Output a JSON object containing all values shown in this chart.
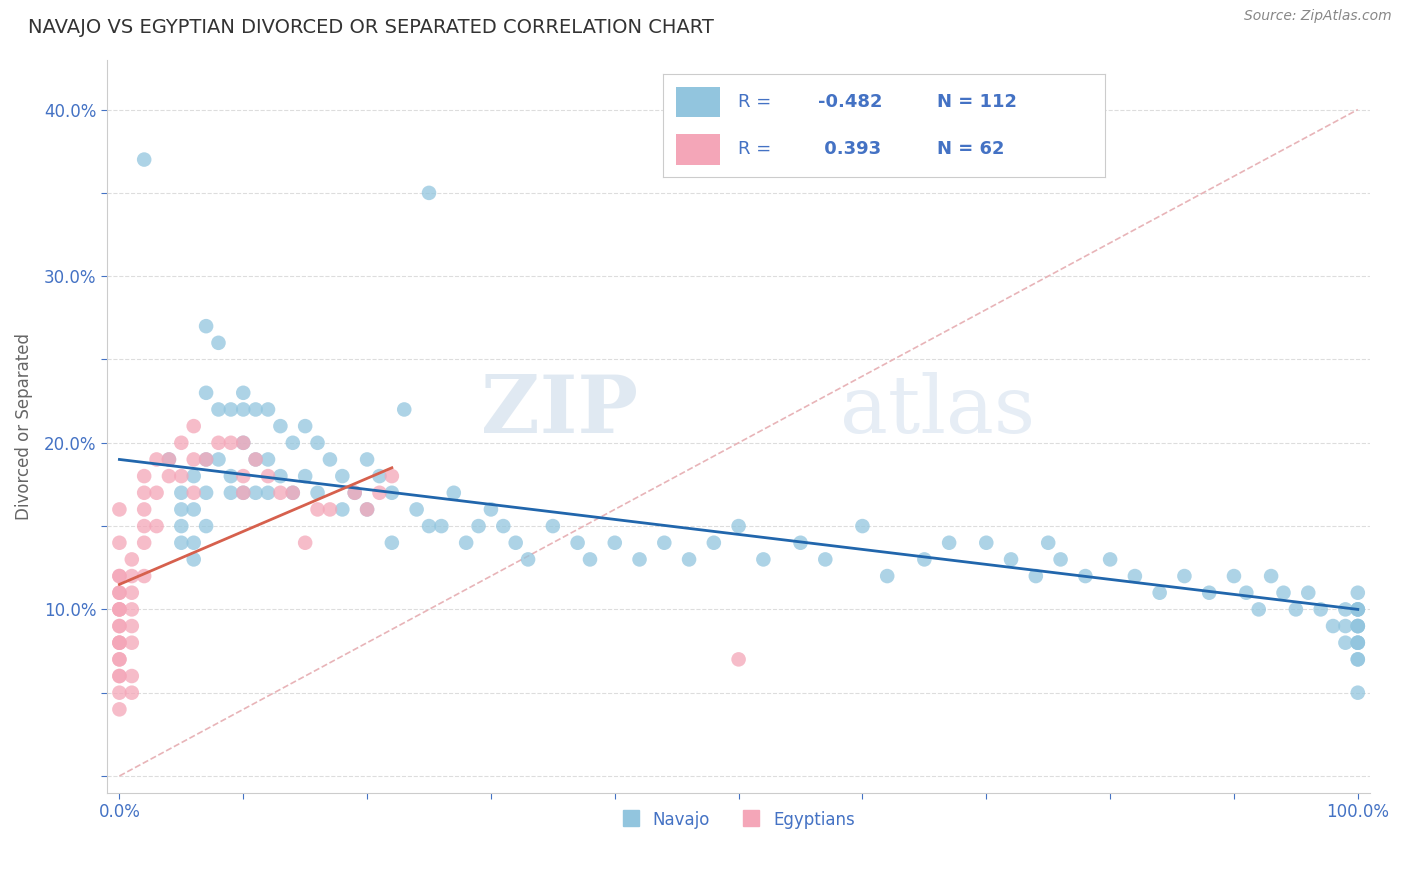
{
  "title": "NAVAJO VS EGYPTIAN DIVORCED OR SEPARATED CORRELATION CHART",
  "source": "Source: ZipAtlas.com",
  "ylabel": "Divorced or Separated",
  "xlim": [
    -0.01,
    1.01
  ],
  "ylim": [
    -0.01,
    0.43
  ],
  "xticks": [
    0.0,
    0.1,
    0.2,
    0.3,
    0.4,
    0.5,
    0.6,
    0.7,
    0.8,
    0.9,
    1.0
  ],
  "yticks": [
    0.0,
    0.05,
    0.1,
    0.15,
    0.2,
    0.25,
    0.3,
    0.35,
    0.4
  ],
  "navajo_R": -0.482,
  "navajo_N": 112,
  "egyptian_R": 0.393,
  "egyptian_N": 62,
  "navajo_color": "#92c5de",
  "egyptian_color": "#f4a6b8",
  "navajo_line_color": "#2166ac",
  "egyptian_line_color": "#d6604d",
  "ref_line_color": "#e8b4b8",
  "tick_color": "#4472c4",
  "background_color": "#ffffff",
  "watermark_zip": "ZIP",
  "watermark_atlas": "atlas",
  "navajo_x": [
    0.02,
    0.04,
    0.05,
    0.05,
    0.05,
    0.05,
    0.06,
    0.06,
    0.06,
    0.06,
    0.07,
    0.07,
    0.07,
    0.07,
    0.07,
    0.08,
    0.08,
    0.08,
    0.09,
    0.09,
    0.09,
    0.1,
    0.1,
    0.1,
    0.1,
    0.11,
    0.11,
    0.11,
    0.12,
    0.12,
    0.12,
    0.13,
    0.13,
    0.14,
    0.14,
    0.15,
    0.15,
    0.16,
    0.16,
    0.17,
    0.18,
    0.18,
    0.19,
    0.2,
    0.2,
    0.21,
    0.22,
    0.22,
    0.23,
    0.24,
    0.25,
    0.25,
    0.26,
    0.27,
    0.28,
    0.29,
    0.3,
    0.31,
    0.32,
    0.33,
    0.35,
    0.37,
    0.38,
    0.4,
    0.42,
    0.44,
    0.46,
    0.48,
    0.5,
    0.52,
    0.55,
    0.57,
    0.6,
    0.62,
    0.65,
    0.67,
    0.7,
    0.72,
    0.74,
    0.75,
    0.76,
    0.78,
    0.8,
    0.82,
    0.84,
    0.86,
    0.88,
    0.9,
    0.91,
    0.92,
    0.93,
    0.94,
    0.95,
    0.96,
    0.97,
    0.98,
    0.99,
    0.99,
    0.99,
    1.0,
    1.0,
    1.0,
    1.0,
    1.0,
    1.0,
    1.0,
    1.0,
    1.0,
    1.0,
    1.0,
    1.0,
    1.0
  ],
  "navajo_y": [
    0.37,
    0.19,
    0.17,
    0.16,
    0.15,
    0.14,
    0.18,
    0.16,
    0.14,
    0.13,
    0.27,
    0.23,
    0.19,
    0.17,
    0.15,
    0.26,
    0.22,
    0.19,
    0.22,
    0.18,
    0.17,
    0.23,
    0.22,
    0.2,
    0.17,
    0.22,
    0.19,
    0.17,
    0.22,
    0.19,
    0.17,
    0.21,
    0.18,
    0.2,
    0.17,
    0.21,
    0.18,
    0.2,
    0.17,
    0.19,
    0.18,
    0.16,
    0.17,
    0.19,
    0.16,
    0.18,
    0.17,
    0.14,
    0.22,
    0.16,
    0.35,
    0.15,
    0.15,
    0.17,
    0.14,
    0.15,
    0.16,
    0.15,
    0.14,
    0.13,
    0.15,
    0.14,
    0.13,
    0.14,
    0.13,
    0.14,
    0.13,
    0.14,
    0.15,
    0.13,
    0.14,
    0.13,
    0.15,
    0.12,
    0.13,
    0.14,
    0.14,
    0.13,
    0.12,
    0.14,
    0.13,
    0.12,
    0.13,
    0.12,
    0.11,
    0.12,
    0.11,
    0.12,
    0.11,
    0.1,
    0.12,
    0.11,
    0.1,
    0.11,
    0.1,
    0.09,
    0.1,
    0.09,
    0.08,
    0.11,
    0.1,
    0.09,
    0.08,
    0.07,
    0.1,
    0.09,
    0.08,
    0.07,
    0.05,
    0.1,
    0.09,
    0.08
  ],
  "egyptian_x": [
    0.0,
    0.0,
    0.0,
    0.0,
    0.0,
    0.0,
    0.0,
    0.0,
    0.0,
    0.0,
    0.0,
    0.0,
    0.0,
    0.0,
    0.0,
    0.0,
    0.0,
    0.0,
    0.0,
    0.0,
    0.01,
    0.01,
    0.01,
    0.01,
    0.01,
    0.01,
    0.01,
    0.01,
    0.02,
    0.02,
    0.02,
    0.02,
    0.02,
    0.02,
    0.03,
    0.03,
    0.03,
    0.04,
    0.04,
    0.05,
    0.05,
    0.06,
    0.06,
    0.06,
    0.07,
    0.08,
    0.09,
    0.1,
    0.1,
    0.1,
    0.11,
    0.12,
    0.13,
    0.14,
    0.15,
    0.16,
    0.17,
    0.19,
    0.2,
    0.21,
    0.22,
    0.5
  ],
  "egyptian_y": [
    0.12,
    0.11,
    0.11,
    0.1,
    0.1,
    0.09,
    0.09,
    0.08,
    0.08,
    0.08,
    0.07,
    0.07,
    0.06,
    0.06,
    0.05,
    0.04,
    0.16,
    0.14,
    0.12,
    0.1,
    0.13,
    0.12,
    0.11,
    0.1,
    0.09,
    0.08,
    0.06,
    0.05,
    0.18,
    0.17,
    0.16,
    0.15,
    0.14,
    0.12,
    0.19,
    0.17,
    0.15,
    0.19,
    0.18,
    0.2,
    0.18,
    0.21,
    0.19,
    0.17,
    0.19,
    0.2,
    0.2,
    0.2,
    0.18,
    0.17,
    0.19,
    0.18,
    0.17,
    0.17,
    0.14,
    0.16,
    0.16,
    0.17,
    0.16,
    0.17,
    0.18,
    0.07
  ],
  "navajo_trend_x": [
    0.0,
    1.0
  ],
  "navajo_trend_y": [
    0.19,
    0.1
  ],
  "egyptian_trend_x": [
    0.0,
    0.22
  ],
  "egyptian_trend_y": [
    0.115,
    0.185
  ]
}
